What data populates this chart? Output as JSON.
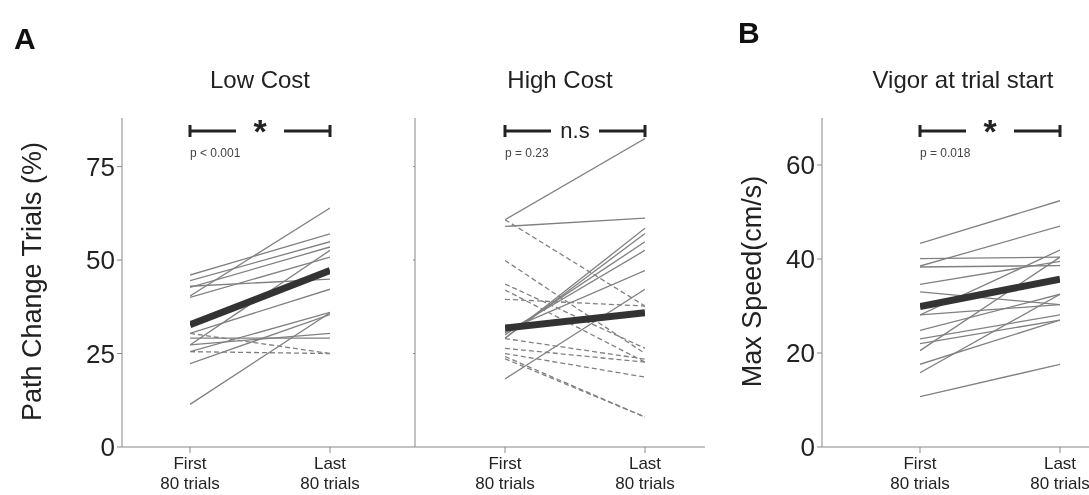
{
  "chart_data": [
    {
      "type": "line",
      "title": "Low Cost",
      "ylabel": "Path Change Trials (%)",
      "categories": [
        "First\n80 trials",
        "Last\n80 trials"
      ],
      "ylim": [
        0,
        88
      ],
      "yticks": [
        0,
        25,
        50,
        75
      ],
      "marker": "none",
      "annotations": [
        "*",
        "p < 0.001",
        "A"
      ],
      "series": [
        {
          "color": "#808080",
          "values": [
            46,
            57
          ]
        },
        {
          "color": "#808080",
          "values": [
            44.5,
            54.9
          ]
        },
        {
          "color": "#808080",
          "values": [
            42.7,
            53.5
          ]
        },
        {
          "color": "#808080",
          "values": [
            40.4,
            63.9
          ]
        },
        {
          "color": "#808080",
          "values": [
            40,
            50.8
          ]
        },
        {
          "color": "#808080",
          "values": [
            43,
            44.9
          ]
        },
        {
          "color": "#808080",
          "values": [
            30.4,
            42.2
          ]
        },
        {
          "color": "#808080",
          "values": [
            27.3,
            52.6
          ]
        },
        {
          "color": "#808080",
          "values": [
            25.5,
            36
          ]
        },
        {
          "color": "#808080",
          "values": [
            22.3,
            35.4
          ]
        },
        {
          "color": "#808080",
          "values": [
            11.4,
            35.9
          ]
        },
        {
          "color": "#808080",
          "values": [
            29.1,
            29.1
          ]
        },
        {
          "color": "#808080",
          "values": [
            27.3,
            30.4
          ]
        },
        {
          "color": "#808080",
          "values": [
            25.5,
            25
          ],
          "line_style": "dashed"
        },
        {
          "color": "#808080",
          "values": [
            30.4,
            25
          ],
          "line_style": "dashed"
        },
        {
          "color": "#333333",
          "values": [
            32.7,
            47.2
          ]
        }
      ]
    },
    {
      "type": "line",
      "title": "High Cost",
      "categories": [
        "First\n80 trials",
        "Last\n80 trials"
      ],
      "ylim": [
        0,
        88
      ],
      "yticks": [
        0,
        25,
        50,
        75
      ],
      "tick_labels": "x",
      "marker": "none",
      "annotations": [
        "n.s",
        "p = 0.23"
      ],
      "series": [
        {
          "color": "#808080",
          "values": [
            60.8,
            82.5
          ]
        },
        {
          "color": "#808080",
          "values": [
            59,
            61.2
          ]
        },
        {
          "color": "#808080",
          "values": [
            29.1,
            58.5
          ]
        },
        {
          "color": "#808080",
          "values": [
            29.1,
            57.1
          ]
        },
        {
          "color": "#808080",
          "values": [
            30,
            54.9
          ]
        },
        {
          "color": "#808080",
          "values": [
            30.5,
            52.6
          ]
        },
        {
          "color": "#808080",
          "values": [
            31,
            47.2
          ]
        },
        {
          "color": "#808080",
          "values": [
            18.2,
            42.2
          ]
        },
        {
          "color": "#808080",
          "values": [
            60.8,
            37.7
          ],
          "line_style": "dashed"
        },
        {
          "color": "#808080",
          "values": [
            49.9,
            25
          ],
          "line_style": "dashed"
        },
        {
          "color": "#808080",
          "values": [
            43.6,
            26.4
          ],
          "line_style": "dashed"
        },
        {
          "color": "#808080",
          "values": [
            42,
            22.7
          ],
          "line_style": "dashed"
        },
        {
          "color": "#808080",
          "values": [
            39.5,
            37.7
          ],
          "line_style": "dashed"
        },
        {
          "color": "#808080",
          "values": [
            29,
            23.5
          ],
          "line_style": "dashed"
        },
        {
          "color": "#808080",
          "values": [
            26.4,
            22.7
          ],
          "line_style": "dashed"
        },
        {
          "color": "#808080",
          "values": [
            25,
            18.7
          ],
          "line_style": "dashed"
        },
        {
          "color": "#808080",
          "values": [
            23.6,
            8
          ],
          "line_style": "dashed"
        },
        {
          "color": "#808080",
          "values": [
            24.2,
            8
          ],
          "line_style": "dashed"
        },
        {
          "color": "#333333",
          "values": [
            31.8,
            35.9
          ]
        }
      ]
    },
    {
      "type": "line",
      "title": "Vigor at trial start",
      "ylabel": "Max Speed(cm/s)",
      "categories": [
        "First\n80 trials",
        "Last\n80 trials"
      ],
      "ylim": [
        0,
        70
      ],
      "yticks": [
        0,
        20,
        40,
        60
      ],
      "marker": "none",
      "annotations": [
        "*",
        "p = 0.018",
        "B"
      ],
      "series": [
        {
          "color": "#808080",
          "values": [
            43.3,
            52.4
          ]
        },
        {
          "color": "#808080",
          "values": [
            38.5,
            47
          ]
        },
        {
          "color": "#808080",
          "values": [
            40.1,
            40.4
          ]
        },
        {
          "color": "#808080",
          "values": [
            38.3,
            38.6
          ]
        },
        {
          "color": "#808080",
          "values": [
            34.6,
            39.5
          ]
        },
        {
          "color": "#808080",
          "values": [
            33,
            30.3
          ]
        },
        {
          "color": "#808080",
          "values": [
            28.1,
            30.3
          ]
        },
        {
          "color": "#808080",
          "values": [
            28.1,
            41.9
          ]
        },
        {
          "color": "#808080",
          "values": [
            24.8,
            32.5
          ]
        },
        {
          "color": "#808080",
          "values": [
            23,
            28.1
          ]
        },
        {
          "color": "#808080",
          "values": [
            22,
            27
          ]
        },
        {
          "color": "#808080",
          "values": [
            20.5,
            40.4
          ]
        },
        {
          "color": "#808080",
          "values": [
            17.6,
            27
          ]
        },
        {
          "color": "#808080",
          "values": [
            15.8,
            32.5
          ]
        },
        {
          "color": "#808080",
          "values": [
            10.7,
            17.6
          ]
        },
        {
          "color": "#333333",
          "values": [
            29.9,
            35.7
          ]
        }
      ]
    }
  ]
}
